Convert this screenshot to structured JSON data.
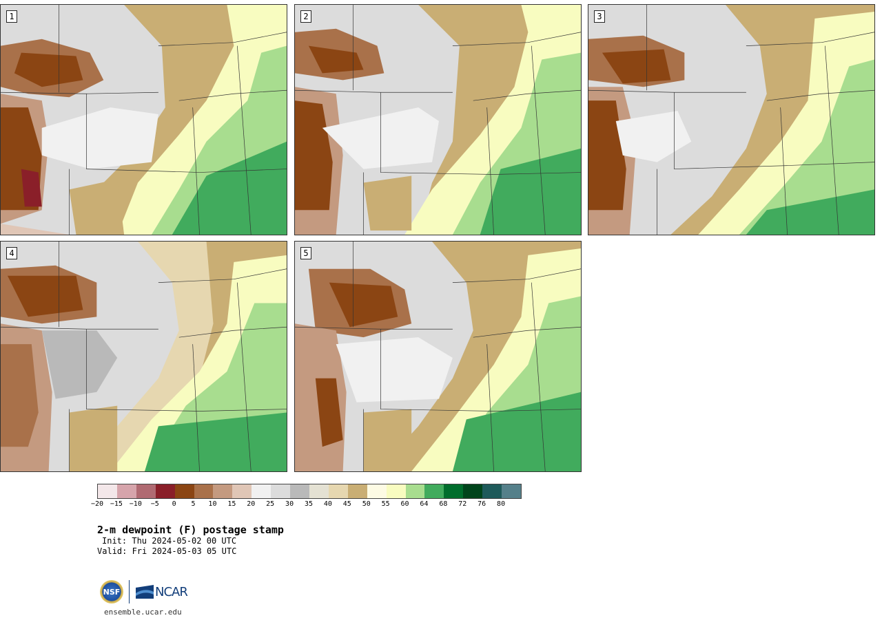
{
  "panels": [
    {
      "label": "1"
    },
    {
      "label": "2"
    },
    {
      "label": "3"
    },
    {
      "label": "4"
    },
    {
      "label": "5"
    }
  ],
  "colorbar": {
    "colors": [
      "#f3e7e9",
      "#d6a4ab",
      "#b06a72",
      "#8a1f29",
      "#8b4513",
      "#a9714a",
      "#c49a80",
      "#e0c6b6",
      "#f1f1f1",
      "#dcdcdc",
      "#b9b9b9",
      "#e4e1d3",
      "#e6d7b0",
      "#c9ae74",
      "#fdfbe4",
      "#f8fcc0",
      "#a8dd8f",
      "#41ab5d",
      "#006d2c",
      "#00441b",
      "#1e5a5a",
      "#55808a"
    ],
    "tick_labels": [
      "−20",
      "−15",
      "−10",
      "−5",
      "0",
      "5",
      "10",
      "15",
      "20",
      "25",
      "30",
      "35",
      "40",
      "45",
      "50",
      "55",
      "60",
      "64",
      "68",
      "72",
      "76",
      "80"
    ]
  },
  "title": "2-m dewpoint (F) postage stamp",
  "init_text": "Init: Thu 2024-05-02 00 UTC",
  "valid_text": "Valid: Fri 2024-05-03 05 UTC",
  "logos": {
    "nsf_text": "NSF",
    "ncar_text": "NCAR"
  },
  "site": "ensemble.ucar.edu"
}
